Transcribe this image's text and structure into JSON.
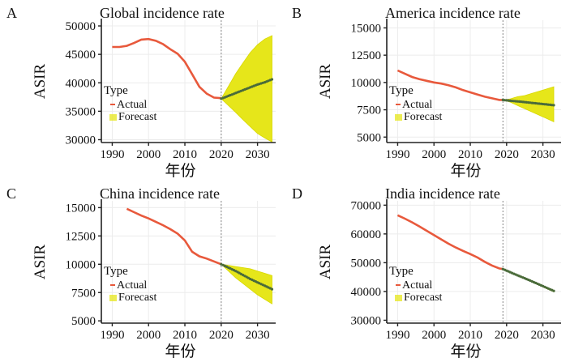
{
  "figure": {
    "xlabel": "年份",
    "ylabel": "ASIR",
    "legend_title": "Type",
    "legend_actual": "Actual",
    "legend_forecast": "Forecast",
    "colors": {
      "actual": "#e8593c",
      "forecast_band": "#e6e61a",
      "forecast_line": "#4a6b3a",
      "reference_line": "#9a9a9a"
    }
  },
  "chart_data": [
    {
      "panel": "A",
      "title": "Global incidence rate",
      "type": "line",
      "xlim": [
        1987,
        2035
      ],
      "ylim": [
        29500,
        51000
      ],
      "xticks": [
        1990,
        2000,
        2010,
        2020,
        2030
      ],
      "yticks": [
        30000,
        35000,
        40000,
        45000,
        50000
      ],
      "ytick_labels": [
        "30000",
        "35000",
        "40000",
        "45000",
        "50000"
      ],
      "reference_x": 2020,
      "legend": true,
      "actual": {
        "x": [
          1990,
          1992,
          1994,
          1996,
          1998,
          2000,
          2002,
          2004,
          2006,
          2008,
          2010,
          2012,
          2014,
          2016,
          2018,
          2020
        ],
        "y": [
          46300,
          46300,
          46500,
          47000,
          47600,
          47700,
          47400,
          46800,
          45900,
          45100,
          43700,
          41500,
          39300,
          38100,
          37400,
          37300
        ]
      },
      "forecast": {
        "x": [
          2020,
          2022,
          2024,
          2026,
          2028,
          2030,
          2032,
          2034
        ],
        "y": [
          37200,
          37700,
          38200,
          38700,
          39200,
          39700,
          40100,
          40600
        ],
        "lower": [
          37200,
          36000,
          34800,
          33500,
          32300,
          31100,
          30300,
          29600
        ],
        "upper": [
          37200,
          39400,
          41600,
          43500,
          45300,
          46700,
          47700,
          48300
        ]
      }
    },
    {
      "panel": "B",
      "title": "America incidence rate",
      "type": "line",
      "xlim": [
        1987,
        2035
      ],
      "ylim": [
        4500,
        15700
      ],
      "xticks": [
        1990,
        2000,
        2010,
        2020,
        2030
      ],
      "yticks": [
        5000,
        7500,
        10000,
        12500,
        15000
      ],
      "ytick_labels": [
        "5000",
        "7500",
        "10000",
        "12500",
        "15000"
      ],
      "reference_x": 2019,
      "legend": true,
      "actual": {
        "x": [
          1990,
          1992,
          1994,
          1996,
          1998,
          2000,
          2002,
          2004,
          2006,
          2008,
          2010,
          2012,
          2014,
          2016,
          2018,
          2019
        ],
        "y": [
          11100,
          10800,
          10500,
          10300,
          10150,
          10000,
          9900,
          9750,
          9550,
          9300,
          9100,
          8900,
          8700,
          8550,
          8400,
          8400
        ]
      },
      "forecast": {
        "x": [
          2019,
          2021,
          2023,
          2025,
          2027,
          2029,
          2031,
          2033
        ],
        "y": [
          8400,
          8330,
          8270,
          8200,
          8130,
          8060,
          7990,
          7920
        ],
        "lower": [
          8400,
          8200,
          7900,
          7600,
          7300,
          7000,
          6700,
          6400
        ],
        "upper": [
          8400,
          8500,
          8700,
          8800,
          9000,
          9200,
          9400,
          9600
        ]
      }
    },
    {
      "panel": "C",
      "title": "China incidence rate",
      "type": "line",
      "xlim": [
        1987,
        2035
      ],
      "ylim": [
        4800,
        15600
      ],
      "xticks": [
        1990,
        2000,
        2010,
        2020,
        2030
      ],
      "yticks": [
        5000,
        7500,
        10000,
        12500,
        15000
      ],
      "ytick_labels": [
        "5000",
        "7500",
        "10000",
        "12500",
        "15000"
      ],
      "reference_x": 2020,
      "legend": true,
      "actual": {
        "x": [
          1994,
          1996,
          1998,
          2000,
          2002,
          2004,
          2006,
          2008,
          2010,
          2012,
          2014,
          2016,
          2018,
          2020
        ],
        "y": [
          14900,
          14600,
          14300,
          14050,
          13750,
          13450,
          13100,
          12700,
          12100,
          11100,
          10700,
          10500,
          10250,
          10000
        ]
      },
      "forecast": {
        "x": [
          2020,
          2022,
          2024,
          2026,
          2028,
          2030,
          2032,
          2034
        ],
        "y": [
          10000,
          9700,
          9400,
          9050,
          8700,
          8400,
          8100,
          7800
        ],
        "lower": [
          10000,
          9400,
          8800,
          8300,
          7800,
          7300,
          6900,
          6500
        ],
        "upper": [
          10000,
          9900,
          9800,
          9700,
          9600,
          9400,
          9200,
          9000
        ]
      }
    },
    {
      "panel": "D",
      "title": "India incidence rate",
      "type": "line",
      "xlim": [
        1987,
        2035
      ],
      "ylim": [
        29000,
        71500
      ],
      "xticks": [
        1990,
        2000,
        2010,
        2020,
        2030
      ],
      "yticks": [
        30000,
        40000,
        50000,
        60000,
        70000
      ],
      "ytick_labels": [
        "30000",
        "40000",
        "50000",
        "60000",
        "70000"
      ],
      "reference_x": 2019,
      "legend": true,
      "actual": {
        "x": [
          1990,
          1992,
          1994,
          1996,
          1998,
          2000,
          2002,
          2004,
          2006,
          2008,
          2010,
          2012,
          2014,
          2016,
          2018,
          2019
        ],
        "y": [
          66500,
          65300,
          64000,
          62600,
          61100,
          59600,
          58100,
          56600,
          55300,
          54100,
          53000,
          51800,
          50300,
          49000,
          48000,
          47800
        ]
      },
      "forecast": {
        "x": [
          2019,
          2021,
          2023,
          2025,
          2027,
          2029,
          2031,
          2033
        ],
        "y": [
          47800,
          46700,
          45600,
          44600,
          43500,
          42400,
          41300,
          40200
        ],
        "lower": [
          47800,
          46600,
          45500,
          44400,
          43300,
          42200,
          41000,
          39900
        ],
        "upper": [
          47800,
          46800,
          45800,
          44800,
          43700,
          42600,
          41500,
          40400
        ]
      }
    }
  ]
}
